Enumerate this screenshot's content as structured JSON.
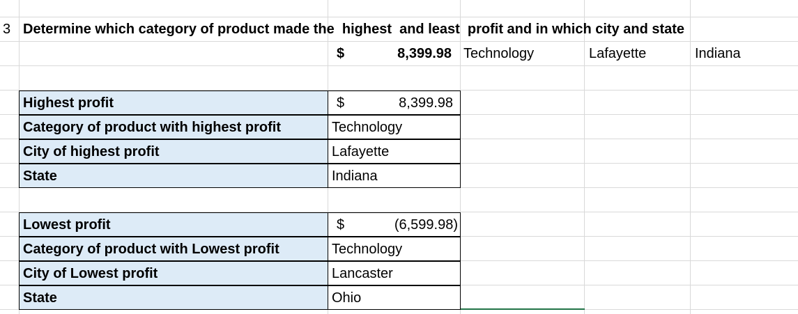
{
  "row_number": "3",
  "question": "Determine which category of product made the  highest  and least  profit and in which city and state",
  "summary": {
    "currency": "$",
    "amount": "8,399.98",
    "category": "Technology",
    "city": "Lafayette",
    "state": "Indiana"
  },
  "tables": [
    {
      "rows": [
        {
          "label": "Highest profit",
          "currency": "$",
          "value": "8,399.98"
        },
        {
          "label": "Category of product with highest profit",
          "value": "Technology"
        },
        {
          "label": "City of highest profit",
          "value": "Lafayette"
        },
        {
          "label": "State",
          "value": "Indiana"
        }
      ]
    },
    {
      "rows": [
        {
          "label": "Lowest profit",
          "currency": "$",
          "value": "(6,599.98)"
        },
        {
          "label": "Category of product with Lowest profit",
          "value": "Technology"
        },
        {
          "label": "City of Lowest profit",
          "value": "Lancaster"
        },
        {
          "label": "State",
          "value": "Ohio"
        }
      ]
    }
  ]
}
